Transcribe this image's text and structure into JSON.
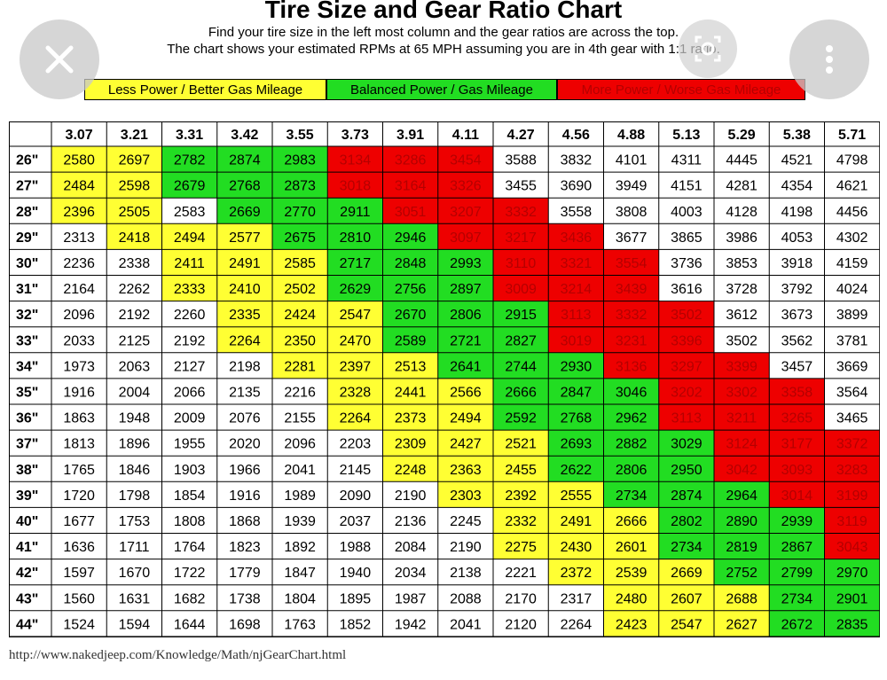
{
  "header": {
    "title": "Tire Size and Gear Ratio Chart",
    "subtitle_1": "Find your tire size in the left most column and the gear ratios are across the top.",
    "subtitle_2": "The chart shows your estimated RPMs at 65 MPH assuming you are in 4th gear with 1:1 ratio."
  },
  "legend": {
    "yellow": "Less Power / Better Gas Mileage",
    "green": "Balanced Power / Gas Mileage",
    "red": "More Power / Worse Gas Mileage"
  },
  "colors": {
    "Y": "#ffff33",
    "G": "#22dd22",
    "R": "#ee0000",
    "W": "#ffffff",
    "red_text": "#b40000"
  },
  "footer": {
    "url": "http://www.nakedjeep.com/Knowledge/Math/njGearChart.html"
  },
  "overlay": {
    "close_icon": "close-icon",
    "lens_icon": "lens-icon",
    "more_icon": "more-vert-icon"
  },
  "chart_data": {
    "type": "table",
    "columns": [
      "3.07",
      "3.21",
      "3.31",
      "3.42",
      "3.55",
      "3.73",
      "3.91",
      "4.11",
      "4.27",
      "4.56",
      "4.88",
      "5.13",
      "5.29",
      "5.38",
      "5.71"
    ],
    "rows": [
      "26\"",
      "27\"",
      "28\"",
      "29\"",
      "30\"",
      "31\"",
      "32\"",
      "33\"",
      "34\"",
      "35\"",
      "36\"",
      "37\"",
      "38\"",
      "39\"",
      "40\"",
      "41\"",
      "42\"",
      "43\"",
      "44\""
    ],
    "values": [
      [
        2580,
        2697,
        2782,
        2874,
        2983,
        3134,
        3286,
        3454,
        3588,
        3832,
        4101,
        4311,
        4445,
        4521,
        4798
      ],
      [
        2484,
        2598,
        2679,
        2768,
        2873,
        3018,
        3164,
        3326,
        3455,
        3690,
        3949,
        4151,
        4281,
        4354,
        4621
      ],
      [
        2396,
        2505,
        2583,
        2669,
        2770,
        2911,
        3051,
        3207,
        3332,
        3558,
        3808,
        4003,
        4128,
        4198,
        4456
      ],
      [
        2313,
        2418,
        2494,
        2577,
        2675,
        2810,
        2946,
        3097,
        3217,
        3436,
        3677,
        3865,
        3986,
        4053,
        4302
      ],
      [
        2236,
        2338,
        2411,
        2491,
        2585,
        2717,
        2848,
        2993,
        3110,
        3321,
        3554,
        3736,
        3853,
        3918,
        4159
      ],
      [
        2164,
        2262,
        2333,
        2410,
        2502,
        2629,
        2756,
        2897,
        3009,
        3214,
        3439,
        3616,
        3728,
        3792,
        4024
      ],
      [
        2096,
        2192,
        2260,
        2335,
        2424,
        2547,
        2670,
        2806,
        2915,
        3113,
        3332,
        3502,
        3612,
        3673,
        3899
      ],
      [
        2033,
        2125,
        2192,
        2264,
        2350,
        2470,
        2589,
        2721,
        2827,
        3019,
        3231,
        3396,
        3502,
        3562,
        3781
      ],
      [
        1973,
        2063,
        2127,
        2198,
        2281,
        2397,
        2513,
        2641,
        2744,
        2930,
        3136,
        3297,
        3399,
        3457,
        3669
      ],
      [
        1916,
        2004,
        2066,
        2135,
        2216,
        2328,
        2441,
        2566,
        2666,
        2847,
        3046,
        3202,
        3302,
        3358,
        3564
      ],
      [
        1863,
        1948,
        2009,
        2076,
        2155,
        2264,
        2373,
        2494,
        2592,
        2768,
        2962,
        3113,
        3211,
        3265,
        3465
      ],
      [
        1813,
        1896,
        1955,
        2020,
        2096,
        2203,
        2309,
        2427,
        2521,
        2693,
        2882,
        3029,
        3124,
        3177,
        3372
      ],
      [
        1765,
        1846,
        1903,
        1966,
        2041,
        2145,
        2248,
        2363,
        2455,
        2622,
        2806,
        2950,
        3042,
        3093,
        3283
      ],
      [
        1720,
        1798,
        1854,
        1916,
        1989,
        2090,
        2190,
        2303,
        2392,
        2555,
        2734,
        2874,
        2964,
        3014,
        3199
      ],
      [
        1677,
        1753,
        1808,
        1868,
        1939,
        2037,
        2136,
        2245,
        2332,
        2491,
        2666,
        2802,
        2890,
        2939,
        3119
      ],
      [
        1636,
        1711,
        1764,
        1823,
        1892,
        1988,
        2084,
        2190,
        2275,
        2430,
        2601,
        2734,
        2819,
        2867,
        3043
      ],
      [
        1597,
        1670,
        1722,
        1779,
        1847,
        1940,
        2034,
        2138,
        2221,
        2372,
        2539,
        2669,
        2752,
        2799,
        2970
      ],
      [
        1560,
        1631,
        1682,
        1738,
        1804,
        1895,
        1987,
        2088,
        2170,
        2317,
        2480,
        2607,
        2688,
        2734,
        2901
      ],
      [
        1524,
        1594,
        1644,
        1698,
        1763,
        1852,
        1942,
        2041,
        2120,
        2264,
        2423,
        2547,
        2627,
        2672,
        2835
      ]
    ],
    "cell_colors": [
      "YYGGGRRRWWWWWWW",
      "YYGGGRRRWWWWWWW",
      "YYWGGGRRRWWWWWW",
      "WYYYGGGRRRWWWWW",
      "WWYYYGGGRRRWWWW",
      "WWYYYGGGRRRWWWW",
      "WWWYYYGGGRRRWWW",
      "WWWYYYGGGRRRWWW",
      "WWWWYYYGGGRRRWW",
      "WWWWWYYYGGGRRRW",
      "WWWWWYYYGGGRRRW",
      "WWWWWWYYYGGGRRR",
      "WWWWWWYYYGGGRRR",
      "WWWWWWWYYYGGGRR",
      "WWWWWWWWYYYGGGR",
      "WWWWWWWWYYYGGGR",
      "WWWWWWWWWYYYGGG",
      "WWWWWWWWWWYYYGG",
      "WWWWWWWWWWYYYGG"
    ]
  }
}
